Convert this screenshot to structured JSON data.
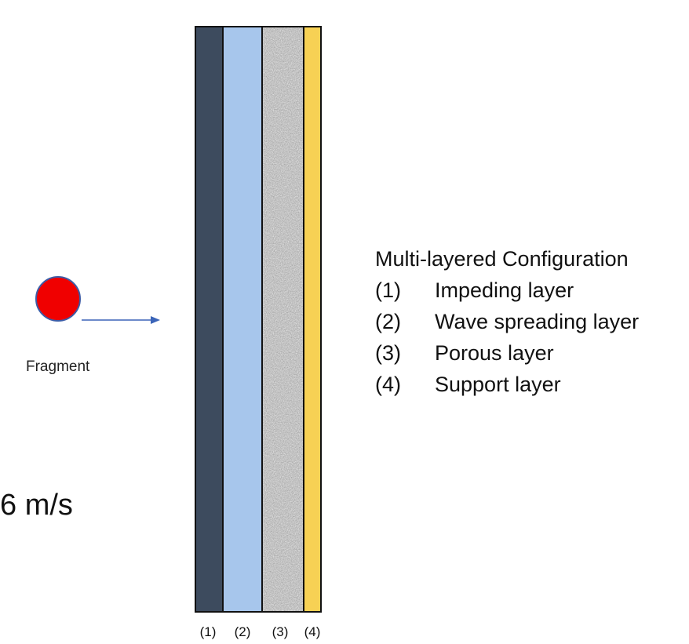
{
  "fragment": {
    "label": "Fragment",
    "color": "#f00000"
  },
  "velocity": {
    "text": "6 m/s"
  },
  "layers": [
    {
      "label": "(1)",
      "color": "#3d4b5e"
    },
    {
      "label": "(2)",
      "color": "#a7c6ec"
    },
    {
      "label": "(3)",
      "color": "#b4b4b4"
    },
    {
      "label": "(4)",
      "color": "#f7d154"
    }
  ],
  "legend": {
    "title": "Multi-layered Configuration",
    "items": [
      {
        "num": "(1)",
        "text": "Impeding layer"
      },
      {
        "num": "(2)",
        "text": "Wave spreading layer"
      },
      {
        "num": "(3)",
        "text": "Porous layer"
      },
      {
        "num": "(4)",
        "text": "Support layer"
      }
    ]
  }
}
